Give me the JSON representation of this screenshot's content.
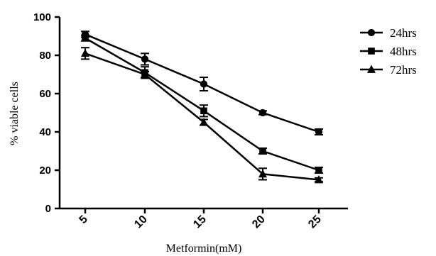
{
  "chart_data": {
    "type": "line",
    "title": "",
    "xlabel": "Metformin(mM)",
    "ylabel": "% viable cells",
    "x": [
      5,
      10,
      15,
      20,
      25
    ],
    "x_tick_labels": [
      "5",
      "10",
      "15",
      "20",
      "25"
    ],
    "ylim": [
      0,
      100
    ],
    "y_ticks": [
      0,
      20,
      40,
      60,
      80,
      100
    ],
    "y_tick_labels": [
      "0",
      "20",
      "40",
      "60",
      "80",
      "100"
    ],
    "grid": false,
    "legend_position": "top-right",
    "series": [
      {
        "name": "24hrs",
        "marker": "circle",
        "values": [
          91,
          78,
          65,
          50,
          40
        ],
        "errors": [
          1.5,
          3,
          3.5,
          1,
          1.5
        ]
      },
      {
        "name": "48hrs",
        "marker": "square",
        "values": [
          89,
          71,
          51,
          30,
          20
        ],
        "errors": [
          1.5,
          3,
          3,
          1.5,
          1.5
        ]
      },
      {
        "name": "72hrs",
        "marker": "triangle",
        "values": [
          81,
          70,
          45,
          18,
          15
        ],
        "errors": [
          3,
          1.5,
          1.5,
          3,
          1
        ]
      }
    ],
    "colors": {
      "line": "#000000",
      "axis": "#000000"
    }
  }
}
